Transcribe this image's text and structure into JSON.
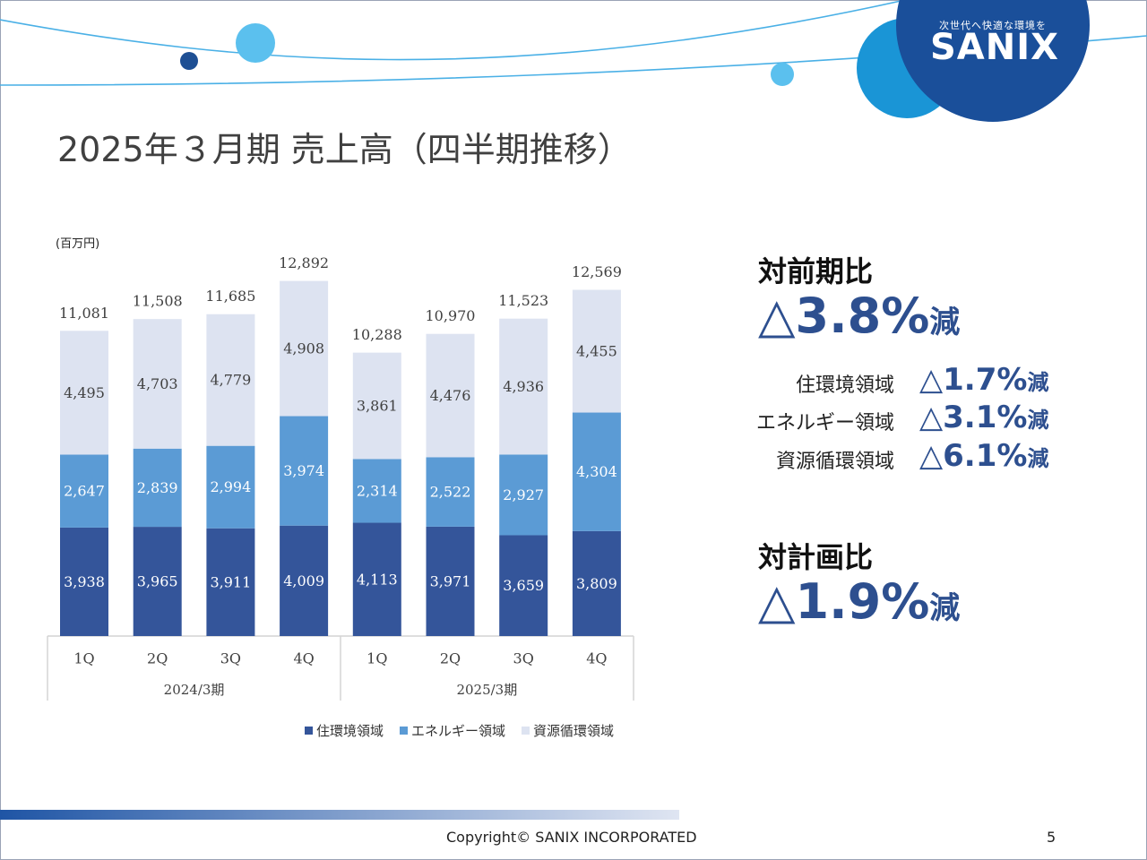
{
  "header": {
    "logo_tagline": "次世代へ快適な環境を",
    "logo_text": "SANIX"
  },
  "page_title": "2025年３月期 売上高（四半期推移）",
  "colors": {
    "housing": "#34559a",
    "energy": "#5b9bd5",
    "resource": "#dde3f1",
    "accent": "#2d4f8f"
  },
  "chart_data": {
    "type": "bar",
    "stacked": true,
    "unit_label": "(百万円)",
    "groups": [
      {
        "label": "2024/3期",
        "quarters": [
          "1Q",
          "2Q",
          "3Q",
          "4Q"
        ]
      },
      {
        "label": "2025/3期",
        "quarters": [
          "1Q",
          "2Q",
          "3Q",
          "4Q"
        ]
      }
    ],
    "series": [
      {
        "name": "住環境領域",
        "values": [
          3938,
          3965,
          3911,
          4009,
          4113,
          3971,
          3659,
          3809
        ]
      },
      {
        "name": "エネルギー領域",
        "values": [
          2647,
          2839,
          2994,
          3974,
          2314,
          2522,
          2927,
          4304
        ]
      },
      {
        "name": "資源循環領域",
        "values": [
          4495,
          4703,
          4779,
          4908,
          3861,
          4476,
          4936,
          4455
        ]
      }
    ],
    "totals": [
      11081,
      11508,
      11685,
      12892,
      10288,
      10970,
      11523,
      12569
    ],
    "legend_position": "bottom",
    "grid": false
  },
  "summary": {
    "yoy_label": "対前期比",
    "yoy_value": "△3.8%",
    "yoy_suffix": "減",
    "segments": [
      {
        "label": "住環境領域",
        "value": "△1.7%",
        "suffix": "減"
      },
      {
        "label": "エネルギー領域",
        "value": "△3.1%",
        "suffix": "減"
      },
      {
        "label": "資源循環領域",
        "value": "△6.1%",
        "suffix": "減"
      }
    ],
    "plan_label": "対計画比",
    "plan_value": "△1.9%",
    "plan_suffix": "減"
  },
  "footer": {
    "copyright": "Copyright©  SANIX INCORPORATED",
    "page_number": "5"
  }
}
